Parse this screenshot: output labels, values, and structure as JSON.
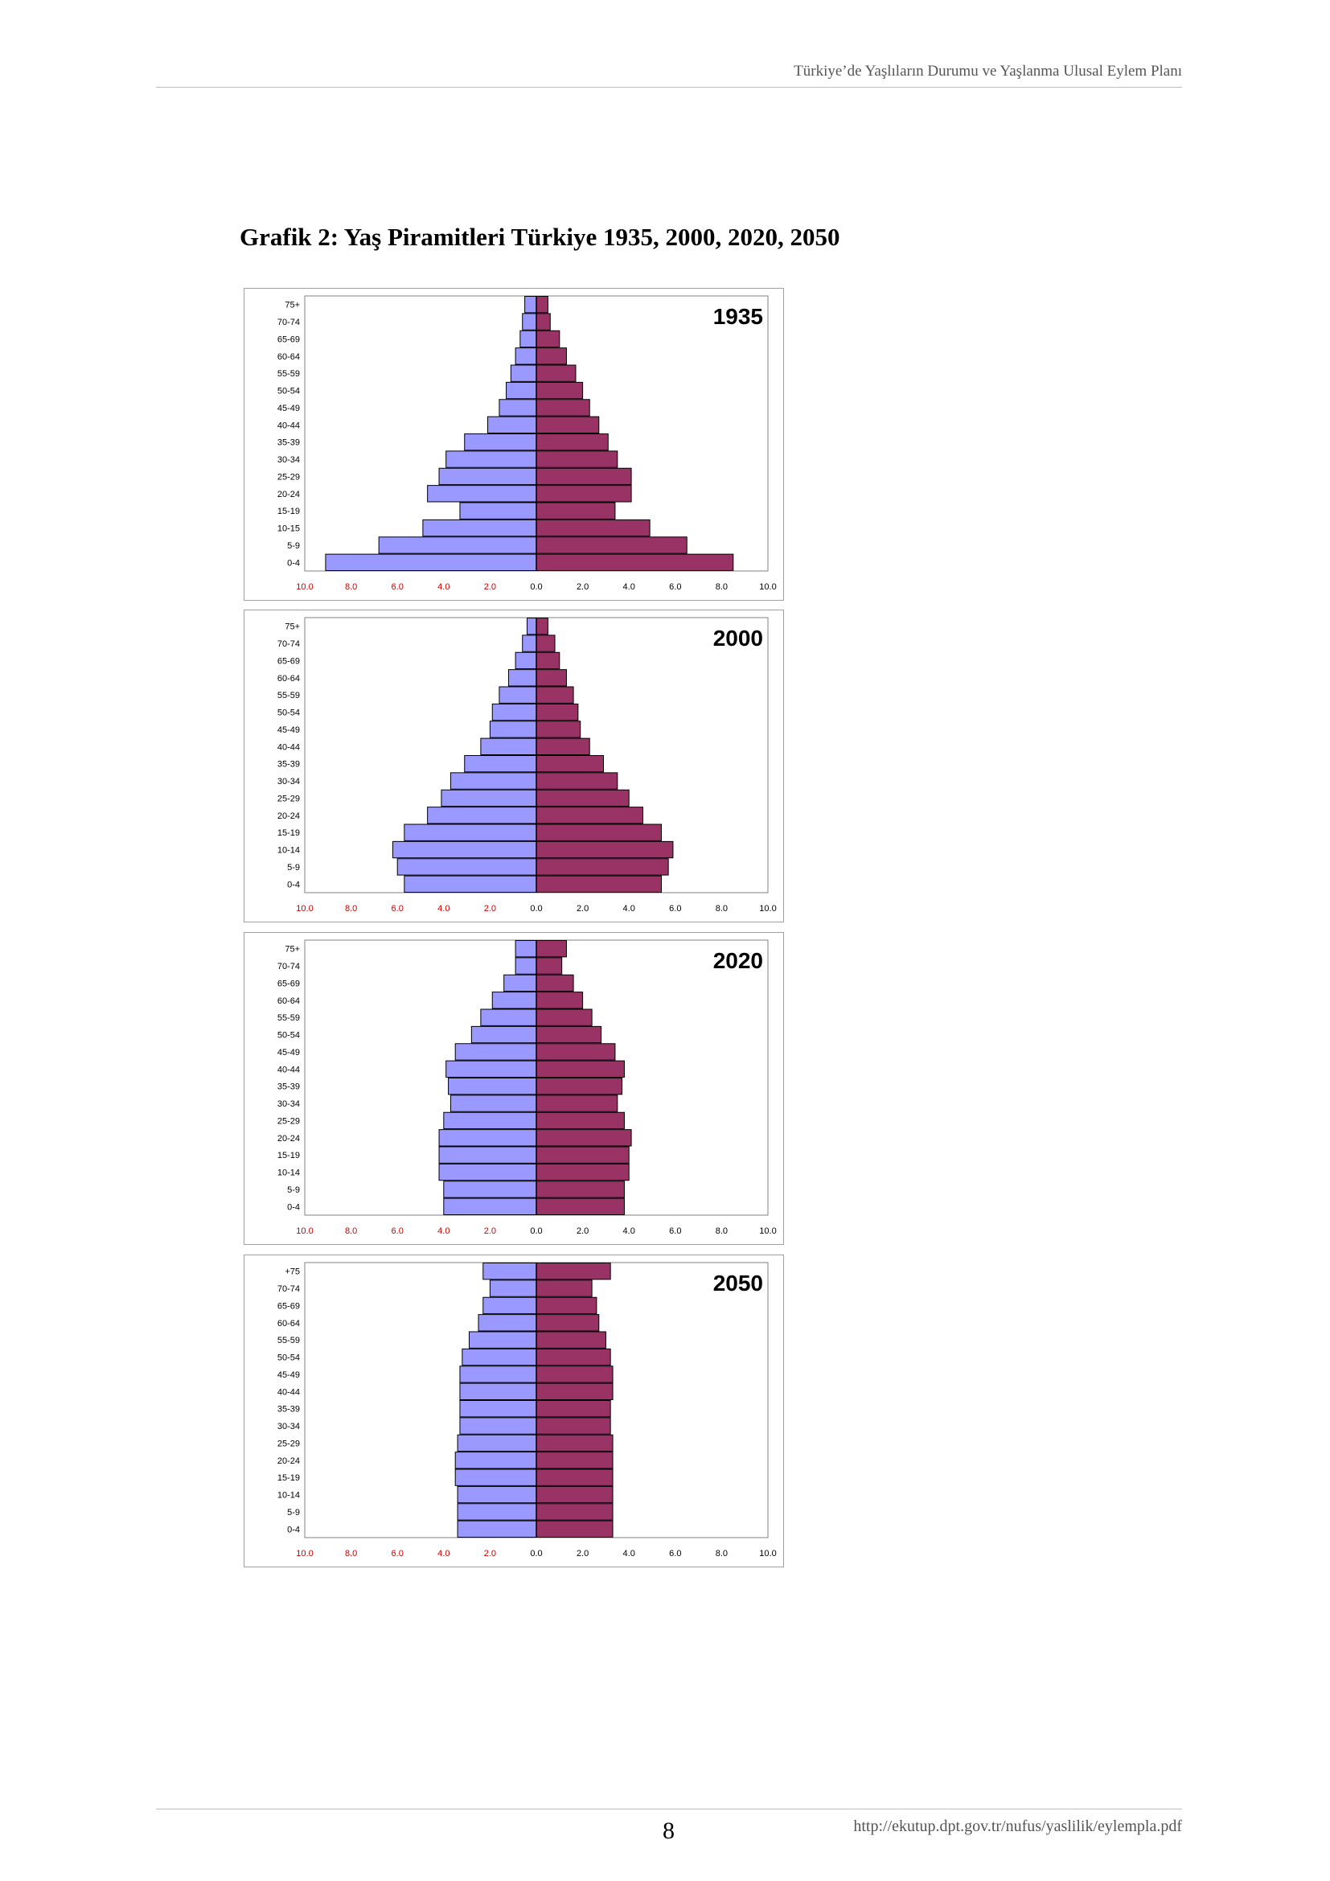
{
  "header": {
    "title": "Türkiye’de Yaşlıların Durumu ve Yaşlanma Ulusal Eylem Planı"
  },
  "figure": {
    "title": "Grafik 2: Yaş Piramitleri Türkiye 1935, 2000, 2020, 2050"
  },
  "footer": {
    "page_number": "8",
    "url": "http://ekutup.dpt.gov.tr/nufus/yaslilik/eylempla.pdf"
  },
  "colors": {
    "male": "#9999ff",
    "female": "#993366",
    "left_ticks": "#cc0000",
    "right_ticks": "#000000",
    "border": "#808080",
    "bar_stroke": "#000000"
  },
  "chart_data": [
    {
      "type": "bar",
      "title": "1935",
      "orientation": "horizontal-population-pyramid",
      "categories": [
        "75+",
        "70-74",
        "65-69",
        "60-64",
        "55-59",
        "50-54",
        "45-49",
        "40-44",
        "35-39",
        "30-34",
        "25-29",
        "20-24",
        "15-19",
        "10-15",
        "5-9",
        "0-4"
      ],
      "series": [
        {
          "values": [
            0.5,
            0.6,
            0.7,
            0.9,
            1.1,
            1.3,
            1.6,
            2.1,
            3.1,
            3.9,
            4.2,
            4.7,
            3.3,
            4.9,
            6.8,
            9.1
          ]
        },
        {
          "values": [
            0.5,
            0.6,
            1.0,
            1.3,
            1.7,
            2.0,
            2.3,
            2.7,
            3.1,
            3.5,
            4.1,
            4.1,
            3.4,
            4.9,
            6.5,
            8.5
          ]
        }
      ],
      "xlim": [
        -10,
        10
      ],
      "left_ticks": [
        "10.0",
        "8.0",
        "6.0",
        "4.0",
        "2.0"
      ],
      "right_ticks": [
        "0.0",
        "2.0",
        "4.0",
        "6.0",
        "8.0",
        "10.0"
      ],
      "grid": false
    },
    {
      "type": "bar",
      "title": "2000",
      "orientation": "horizontal-population-pyramid",
      "categories": [
        "75+",
        "70-74",
        "65-69",
        "60-64",
        "55-59",
        "50-54",
        "45-49",
        "40-44",
        "35-39",
        "30-34",
        "25-29",
        "20-24",
        "15-19",
        "10-14",
        "5-9",
        "0-4"
      ],
      "series": [
        {
          "values": [
            0.4,
            0.6,
            0.9,
            1.2,
            1.6,
            1.9,
            2.0,
            2.4,
            3.1,
            3.7,
            4.1,
            4.7,
            5.7,
            6.2,
            6.0,
            5.7
          ]
        },
        {
          "values": [
            0.5,
            0.8,
            1.0,
            1.3,
            1.6,
            1.8,
            1.9,
            2.3,
            2.9,
            3.5,
            4.0,
            4.6,
            5.4,
            5.9,
            5.7,
            5.4
          ]
        }
      ],
      "xlim": [
        -10,
        10
      ],
      "left_ticks": [
        "10.0",
        "8.0",
        "6.0",
        "4.0",
        "2.0"
      ],
      "right_ticks": [
        "0.0",
        "2.0",
        "4.0",
        "6.0",
        "8.0",
        "10.0"
      ],
      "grid": false
    },
    {
      "type": "bar",
      "title": "2020",
      "orientation": "horizontal-population-pyramid",
      "categories": [
        "75+",
        "70-74",
        "65-69",
        "60-64",
        "55-59",
        "50-54",
        "45-49",
        "40-44",
        "35-39",
        "30-34",
        "25-29",
        "20-24",
        "15-19",
        "10-14",
        "5-9",
        "0-4"
      ],
      "series": [
        {
          "values": [
            0.9,
            0.9,
            1.4,
            1.9,
            2.4,
            2.8,
            3.5,
            3.9,
            3.8,
            3.7,
            4.0,
            4.2,
            4.2,
            4.2,
            4.0,
            4.0
          ]
        },
        {
          "values": [
            1.3,
            1.1,
            1.6,
            2.0,
            2.4,
            2.8,
            3.4,
            3.8,
            3.7,
            3.5,
            3.8,
            4.1,
            4.0,
            4.0,
            3.8,
            3.8
          ]
        }
      ],
      "xlim": [
        -10,
        10
      ],
      "left_ticks": [
        "10.0",
        "8.0",
        "6.0",
        "4.0",
        "2.0"
      ],
      "right_ticks": [
        "0.0",
        "2.0",
        "4.0",
        "6.0",
        "8.0",
        "10.0"
      ],
      "grid": false
    },
    {
      "type": "bar",
      "title": "2050",
      "orientation": "horizontal-population-pyramid",
      "categories": [
        "+75",
        "70-74",
        "65-69",
        "60-64",
        "55-59",
        "50-54",
        "45-49",
        "40-44",
        "35-39",
        "30-34",
        "25-29",
        "20-24",
        "15-19",
        "10-14",
        "5-9",
        "0-4"
      ],
      "series": [
        {
          "values": [
            2.3,
            2.0,
            2.3,
            2.5,
            2.9,
            3.2,
            3.3,
            3.3,
            3.3,
            3.3,
            3.4,
            3.5,
            3.5,
            3.4,
            3.4,
            3.4
          ]
        },
        {
          "values": [
            3.2,
            2.4,
            2.6,
            2.7,
            3.0,
            3.2,
            3.3,
            3.3,
            3.2,
            3.2,
            3.3,
            3.3,
            3.3,
            3.3,
            3.3,
            3.3
          ]
        }
      ],
      "xlim": [
        -10,
        10
      ],
      "left_ticks": [
        "10.0",
        "8.0",
        "6.0",
        "4.0",
        "2.0"
      ],
      "right_ticks": [
        "0.0",
        "2.0",
        "4.0",
        "6.0",
        "8.0",
        "10.0"
      ],
      "grid": false
    }
  ]
}
